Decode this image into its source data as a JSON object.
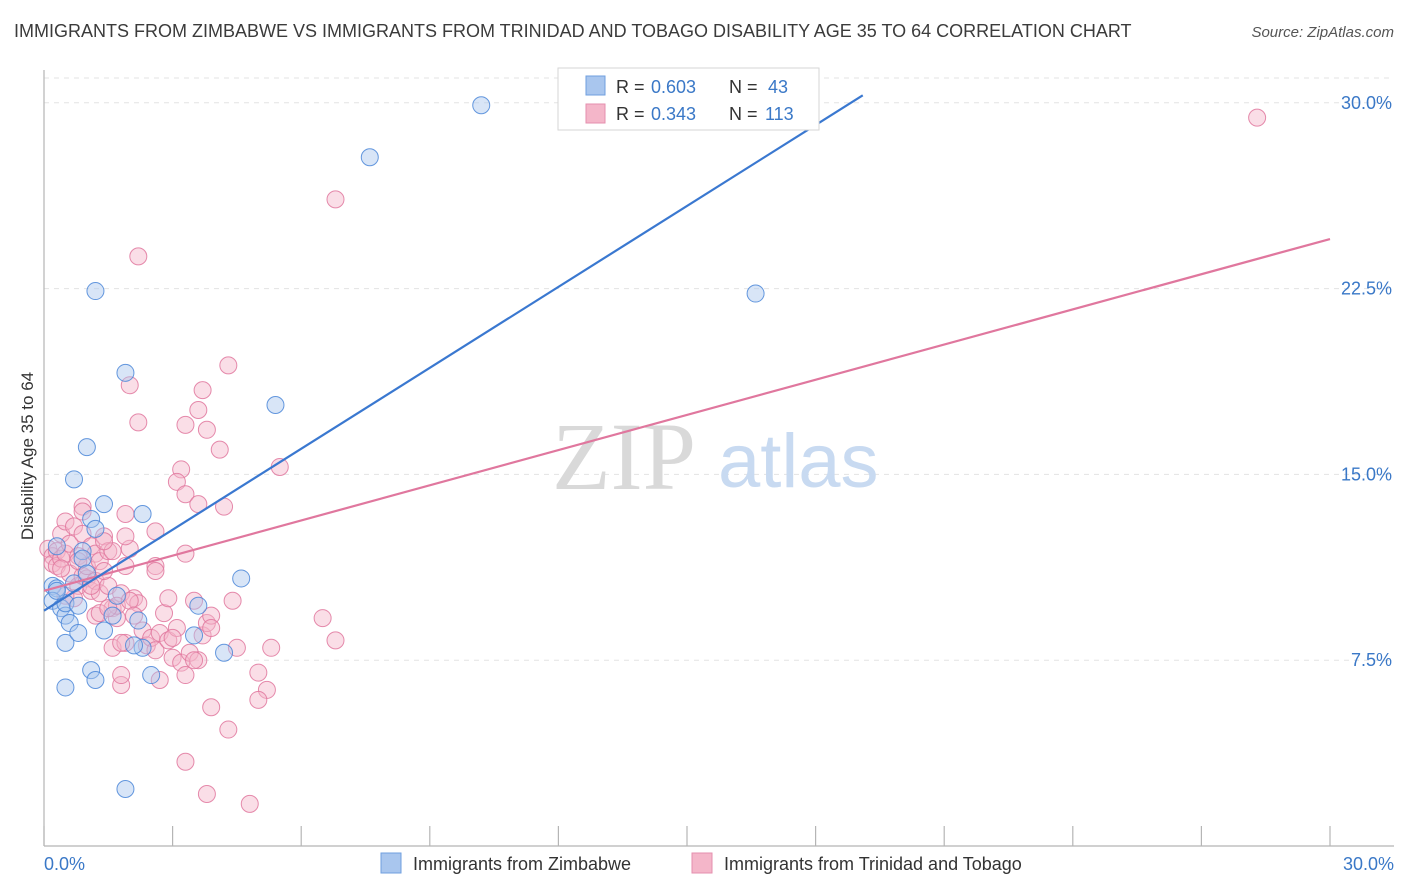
{
  "title": "IMMIGRANTS FROM ZIMBABWE VS IMMIGRANTS FROM TRINIDAD AND TOBAGO DISABILITY AGE 35 TO 64 CORRELATION CHART",
  "source": "Source: ZipAtlas.com",
  "watermark": {
    "zip": "ZIP",
    "atlas": "atlas"
  },
  "legend": {
    "r_label": "R =",
    "n_label": "N =",
    "rows": [
      {
        "r": "0.603",
        "n": "43"
      },
      {
        "r": "0.343",
        "n": "113"
      }
    ]
  },
  "chart_data": {
    "type": "scatter",
    "title": "IMMIGRANTS FROM ZIMBABWE VS IMMIGRANTS FROM TRINIDAD AND TOBAGO DISABILITY AGE 35 TO 64 CORRELATION CHART",
    "xlabel": "",
    "ylabel": "Disability Age 35 to 64",
    "xlim": [
      0,
      30
    ],
    "ylim": [
      0,
      31
    ],
    "x_tick_labels": [
      "0.0%",
      "30.0%"
    ],
    "y_ticks": [
      7.5,
      15.0,
      22.5,
      30.0
    ],
    "y_tick_labels": [
      "7.5%",
      "15.0%",
      "22.5%",
      "30.0%"
    ],
    "grid": true,
    "colors": {
      "blue": "#4a86d8",
      "blue_fill": "#a9c6ee",
      "pink": "#e0779e",
      "pink_fill": "#f4b6c9",
      "tick_text": "#3a78c7"
    },
    "series": [
      {
        "name": "Immigrants from Zimbabwe",
        "color": "#4a86d8",
        "r": 0.603,
        "n": 43,
        "trend": {
          "x": [
            0,
            19.1
          ],
          "y": [
            9.5,
            30.3
          ]
        },
        "points": [
          [
            0.2,
            10.5
          ],
          [
            0.3,
            10.4
          ],
          [
            0.2,
            9.9
          ],
          [
            0.4,
            9.6
          ],
          [
            0.5,
            9.3
          ],
          [
            0.5,
            9.8
          ],
          [
            0.6,
            9.0
          ],
          [
            0.7,
            10.6
          ],
          [
            0.8,
            9.7
          ],
          [
            0.3,
            12.1
          ],
          [
            0.9,
            11.9
          ],
          [
            0.9,
            11.6
          ],
          [
            1.0,
            11.0
          ],
          [
            1.1,
            13.2
          ],
          [
            1.2,
            12.8
          ],
          [
            1.4,
            13.8
          ],
          [
            1.0,
            16.1
          ],
          [
            0.7,
            14.8
          ],
          [
            1.2,
            22.4
          ],
          [
            1.9,
            19.1
          ],
          [
            0.5,
            8.2
          ],
          [
            0.8,
            8.6
          ],
          [
            1.1,
            7.1
          ],
          [
            1.2,
            6.7
          ],
          [
            0.5,
            6.4
          ],
          [
            1.4,
            8.7
          ],
          [
            1.7,
            10.1
          ],
          [
            1.6,
            9.3
          ],
          [
            2.2,
            9.1
          ],
          [
            2.3,
            8.0
          ],
          [
            2.5,
            6.9
          ],
          [
            2.1,
            8.1
          ],
          [
            2.3,
            13.4
          ],
          [
            3.5,
            8.5
          ],
          [
            3.6,
            9.7
          ],
          [
            4.2,
            7.8
          ],
          [
            4.6,
            10.8
          ],
          [
            5.4,
            17.8
          ],
          [
            7.6,
            27.8
          ],
          [
            10.2,
            29.9
          ],
          [
            16.6,
            22.3
          ],
          [
            1.9,
            2.3
          ],
          [
            0.3,
            10.3
          ]
        ]
      },
      {
        "name": "Immigrants from Trinidad and Tobago",
        "color": "#e0779e",
        "r": 0.343,
        "n": 113,
        "trend": {
          "x": [
            0,
            30.0
          ],
          "y": [
            10.3,
            24.5
          ]
        },
        "points": [
          [
            0.1,
            12.0
          ],
          [
            0.2,
            11.7
          ],
          [
            0.2,
            11.4
          ],
          [
            0.3,
            11.9
          ],
          [
            0.3,
            11.3
          ],
          [
            0.4,
            11.6
          ],
          [
            0.4,
            12.6
          ],
          [
            0.5,
            11.8
          ],
          [
            0.5,
            13.1
          ],
          [
            0.6,
            11.0
          ],
          [
            0.6,
            12.2
          ],
          [
            0.7,
            12.9
          ],
          [
            0.8,
            10.5
          ],
          [
            0.8,
            11.7
          ],
          [
            0.9,
            10.9
          ],
          [
            0.9,
            12.6
          ],
          [
            1.0,
            10.8
          ],
          [
            1.0,
            11.3
          ],
          [
            1.1,
            10.3
          ],
          [
            1.1,
            12.1
          ],
          [
            1.2,
            10.7
          ],
          [
            1.2,
            11.8
          ],
          [
            1.3,
            10.2
          ],
          [
            1.3,
            11.5
          ],
          [
            1.4,
            12.5
          ],
          [
            1.5,
            10.5
          ],
          [
            1.5,
            11.9
          ],
          [
            1.6,
            9.6
          ],
          [
            1.7,
            9.2
          ],
          [
            1.8,
            10.2
          ],
          [
            1.9,
            11.3
          ],
          [
            2.0,
            12.0
          ],
          [
            2.1,
            10.0
          ],
          [
            2.2,
            9.8
          ],
          [
            2.3,
            8.7
          ],
          [
            2.4,
            8.1
          ],
          [
            2.5,
            8.4
          ],
          [
            2.6,
            7.9
          ],
          [
            2.7,
            8.6
          ],
          [
            2.8,
            9.4
          ],
          [
            2.9,
            8.3
          ],
          [
            3.0,
            7.6
          ],
          [
            3.1,
            8.8
          ],
          [
            3.2,
            7.4
          ],
          [
            3.3,
            6.9
          ],
          [
            3.4,
            7.8
          ],
          [
            3.5,
            9.9
          ],
          [
            3.6,
            7.5
          ],
          [
            3.7,
            8.5
          ],
          [
            3.8,
            9.0
          ],
          [
            1.6,
            8.0
          ],
          [
            1.9,
            8.2
          ],
          [
            1.8,
            6.5
          ],
          [
            1.8,
            6.9
          ],
          [
            2.6,
            11.3
          ],
          [
            2.6,
            11.1
          ],
          [
            3.2,
            15.2
          ],
          [
            3.1,
            14.7
          ],
          [
            3.3,
            14.2
          ],
          [
            3.6,
            13.8
          ],
          [
            2.2,
            17.1
          ],
          [
            3.3,
            17.0
          ],
          [
            3.6,
            17.6
          ],
          [
            3.7,
            18.4
          ],
          [
            3.8,
            16.8
          ],
          [
            4.1,
            16.0
          ],
          [
            4.3,
            19.4
          ],
          [
            4.2,
            13.7
          ],
          [
            2.6,
            12.7
          ],
          [
            1.9,
            13.4
          ],
          [
            1.9,
            12.5
          ],
          [
            3.3,
            11.8
          ],
          [
            4.4,
            9.9
          ],
          [
            3.9,
            9.3
          ],
          [
            3.9,
            8.8
          ],
          [
            4.5,
            8.0
          ],
          [
            5.0,
            7.0
          ],
          [
            5.2,
            6.3
          ],
          [
            5.3,
            8.0
          ],
          [
            5.0,
            5.9
          ],
          [
            3.9,
            5.6
          ],
          [
            4.3,
            4.7
          ],
          [
            3.3,
            3.4
          ],
          [
            3.8,
            2.1
          ],
          [
            4.8,
            1.7
          ],
          [
            6.5,
            9.2
          ],
          [
            6.8,
            8.3
          ],
          [
            5.5,
            15.3
          ],
          [
            6.8,
            26.1
          ],
          [
            2.2,
            23.8
          ],
          [
            2.0,
            18.6
          ],
          [
            0.8,
            11.5
          ],
          [
            0.9,
            13.7
          ],
          [
            1.6,
            11.9
          ],
          [
            1.4,
            11.1
          ],
          [
            1.2,
            9.3
          ],
          [
            1.7,
            9.7
          ],
          [
            2.0,
            9.9
          ],
          [
            2.1,
            9.3
          ],
          [
            2.7,
            6.7
          ],
          [
            1.1,
            10.5
          ],
          [
            1.3,
            9.4
          ],
          [
            0.7,
            10.0
          ],
          [
            0.5,
            10.1
          ],
          [
            1.5,
            9.6
          ],
          [
            0.9,
            13.5
          ],
          [
            1.4,
            12.3
          ],
          [
            1.8,
            8.2
          ],
          [
            2.9,
            10.0
          ],
          [
            3.0,
            8.4
          ],
          [
            3.5,
            7.5
          ],
          [
            28.3,
            29.4
          ],
          [
            0.4,
            11.2
          ]
        ]
      }
    ]
  }
}
